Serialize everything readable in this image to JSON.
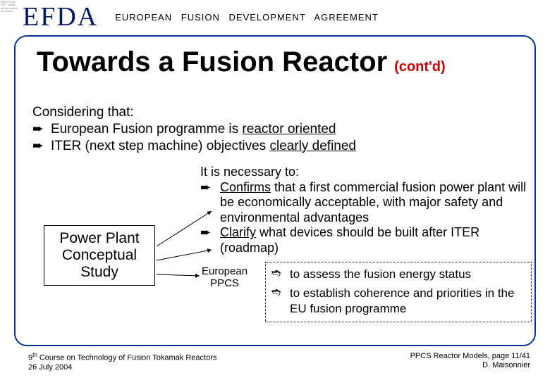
{
  "colors": {
    "frame_border": "#003399",
    "logo": "#001a66",
    "title_suffix": "#cc0000",
    "text": "#000000",
    "background": "#ffffff",
    "arrow": "#000000"
  },
  "header": {
    "logo": "EFDA",
    "subtitle": "EUROPEAN FUSION DEVELOPMENT AGREEMENT",
    "small_box_text": "Micro Scale PICT image format cannot be shown"
  },
  "title": {
    "main": "Towards a Fusion Reactor",
    "suffix": "(cont'd)"
  },
  "block_a": {
    "intro": "Considering that:",
    "bullets": [
      {
        "sym": "➨",
        "plain_a": "European Fusion programme is ",
        "u": "reactor oriented",
        "plain_b": ""
      },
      {
        "sym": "➨",
        "plain_a": "ITER (next step machine) objectives ",
        "u": "clearly defined",
        "plain_b": ""
      }
    ]
  },
  "block_b": {
    "intro": "It is necessary to:",
    "bullets": [
      {
        "sym": "➨",
        "plain_a": "",
        "u": "Confirms",
        "plain_b": " that a first commercial fusion power plant will be economically acceptable, with major safety and environmental advantages"
      },
      {
        "sym": "➨",
        "plain_a": "",
        "u": "Clarify",
        "plain_b": " what devices should be built after ITER (roadmap)"
      }
    ]
  },
  "pp_box": {
    "line1": "Power Plant",
    "line2": "Conceptual",
    "line3": "Study"
  },
  "eppcs": {
    "line1": "European",
    "line2": "PPCS"
  },
  "subbox": {
    "bullets": [
      {
        "sym": "➬",
        "text": "to assess the fusion energy status"
      },
      {
        "sym": "➬",
        "text": "to establish coherence and priorities in the EU fusion programme"
      }
    ]
  },
  "footer": {
    "left_line1_pre": "9",
    "left_line1_sup": "th",
    "left_line1_post": " Course on Technology of Fusion Tokamak Reactors",
    "left_line2": "26 July 2004",
    "right_line1": "PPCS Reactor Models, page 11/41",
    "right_line2": "D. Maisonnier"
  },
  "arrows": {
    "stroke": "#000000",
    "stroke_width": 1,
    "paths": [
      "M222,350 L300,300",
      "M222,370 L300,355",
      "M222,390 L283,392"
    ]
  }
}
